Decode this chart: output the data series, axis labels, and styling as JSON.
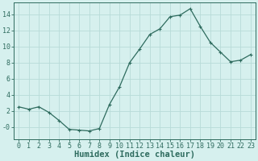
{
  "x": [
    0,
    1,
    2,
    3,
    4,
    5,
    6,
    7,
    8,
    9,
    10,
    11,
    12,
    13,
    14,
    15,
    16,
    17,
    18,
    19,
    20,
    21,
    22,
    23
  ],
  "y": [
    2.5,
    2.2,
    2.5,
    1.8,
    0.8,
    -0.3,
    -0.4,
    -0.5,
    -0.2,
    2.8,
    5.0,
    8.0,
    9.7,
    11.5,
    12.2,
    13.7,
    13.9,
    14.7,
    12.5,
    10.5,
    9.3,
    8.1,
    8.3,
    9.0
  ],
  "line_color": "#2e6b5e",
  "marker": "+",
  "marker_size": 3,
  "marker_linewidth": 0.8,
  "line_width": 0.9,
  "background_color": "#d6f0ee",
  "grid_color": "#b8dbd8",
  "xlabel": "Humidex (Indice chaleur)",
  "xlabel_fontsize": 7.5,
  "tick_fontsize": 6,
  "ylim": [
    -1.5,
    15.5
  ],
  "xlim": [
    -0.5,
    23.5
  ],
  "yticks": [
    0,
    2,
    4,
    6,
    8,
    10,
    12,
    14
  ],
  "ytick_labels": [
    "-0",
    "2",
    "4",
    "6",
    "8",
    "10",
    "12",
    "14"
  ],
  "spine_color": "#2e6b5e"
}
